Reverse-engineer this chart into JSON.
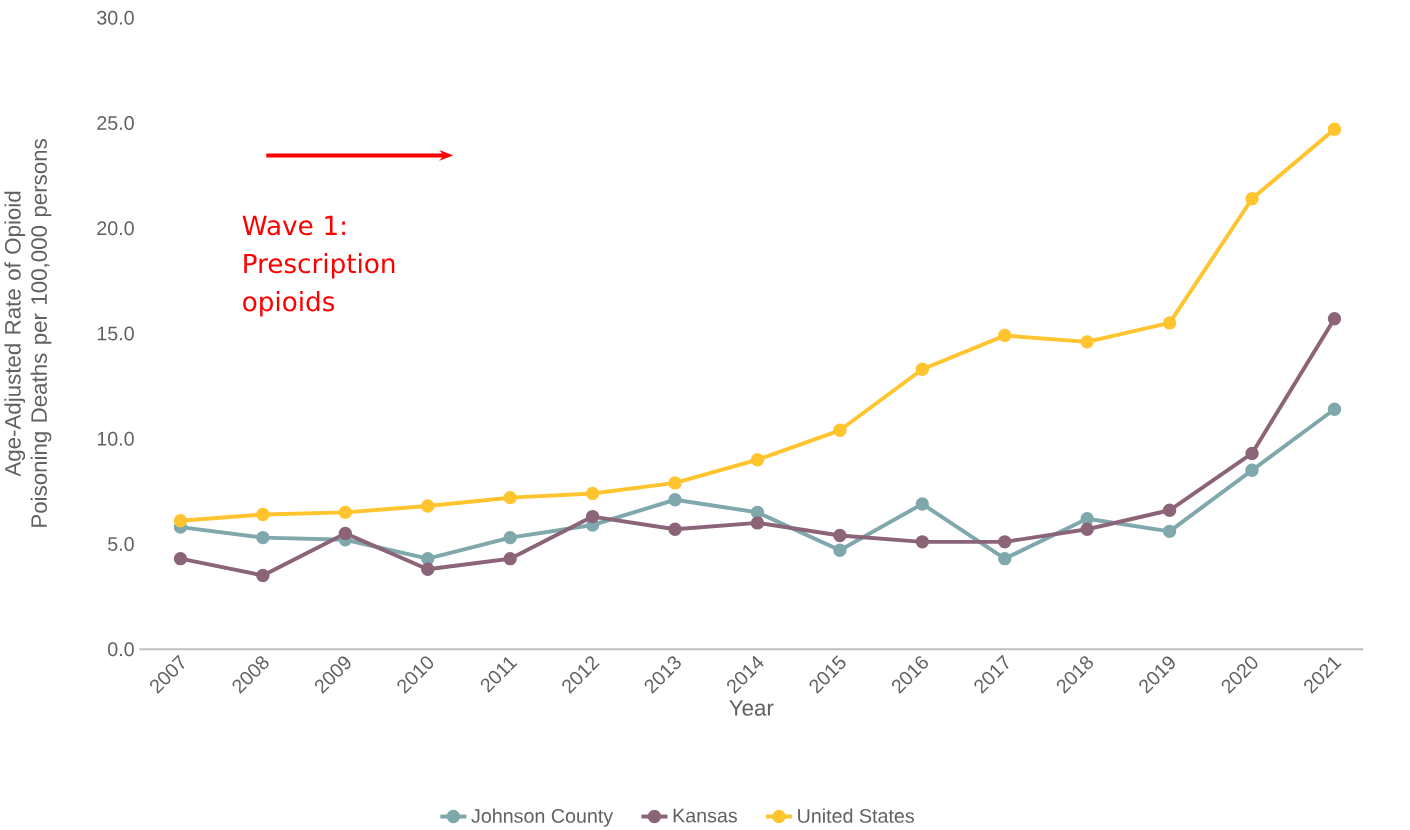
{
  "chart_data": {
    "type": "line",
    "xlabel": "Year",
    "ylabel": "Age-Adjusted Rate of Opioid Poisoning Deaths per 100,000 persons",
    "categories": [
      "2007",
      "2008",
      "2009",
      "2010",
      "2011",
      "2012",
      "2013",
      "2014",
      "2015",
      "2016",
      "2017",
      "2018",
      "2019",
      "2020",
      "2021"
    ],
    "series": [
      {
        "name": "Johnson County",
        "color": "#7fa8ad",
        "values": [
          5.8,
          5.3,
          5.2,
          4.3,
          5.3,
          5.9,
          7.1,
          6.5,
          4.7,
          6.9,
          4.3,
          6.2,
          5.6,
          8.5,
          11.4
        ]
      },
      {
        "name": "Kansas",
        "color": "#8b6478",
        "values": [
          4.3,
          3.5,
          5.5,
          3.8,
          4.3,
          6.3,
          5.7,
          6.0,
          5.4,
          5.1,
          5.1,
          5.7,
          6.6,
          9.3,
          15.7
        ]
      },
      {
        "name": "United States",
        "color": "#ffc42e",
        "values": [
          6.1,
          6.4,
          6.5,
          6.8,
          7.2,
          7.4,
          7.9,
          9.0,
          10.4,
          13.3,
          14.9,
          14.6,
          15.5,
          21.4,
          24.7
        ]
      }
    ],
    "ylim": [
      0,
      30
    ],
    "yticks": [
      {
        "value": 0,
        "label": "0.0"
      },
      {
        "value": 5,
        "label": "5.0"
      },
      {
        "value": 10,
        "label": "10.0"
      },
      {
        "value": 15,
        "label": "15.0"
      },
      {
        "value": 20,
        "label": "20.0"
      },
      {
        "value": 25,
        "label": "25.0"
      },
      {
        "value": 30,
        "label": "30.0"
      }
    ],
    "annotations": [
      "Wave 1: Prescription opioids"
    ],
    "legend": "bottom",
    "grid": false,
    "marker": "circle",
    "line_style": "solid"
  }
}
